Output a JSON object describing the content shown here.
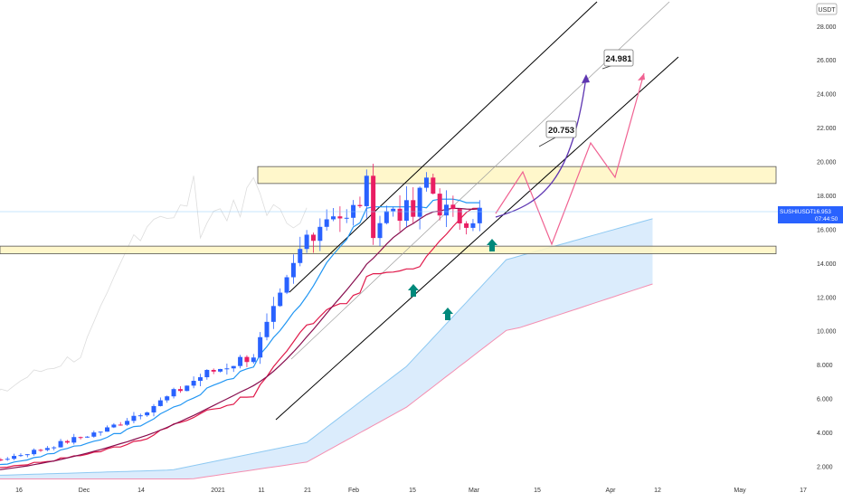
{
  "colors": {
    "up": "#2962ff",
    "down": "#e91e63",
    "tenkan": "#2196f3",
    "kijun": "#e0194a",
    "ema": "#880e4f",
    "cloud_fill": "#cfe6fb",
    "cloud_upper": "#8ec9f2",
    "cloud_lower": "#f48fb1",
    "zone_fill": "#fff6c2",
    "zone_stroke": "#555555",
    "channel": "#000000",
    "channel_mid": "#9e9e9e",
    "path_red": "#f06292",
    "path_purple": "#5e35b1",
    "arrow": "#00897b",
    "price_badge": "#2962ff",
    "price_line": "#90caf9",
    "axis_text": "#333333",
    "lagging": "#dddddd",
    "red_shade": "#f8bbd0"
  },
  "chart_data": {
    "type": "candlestick",
    "symbol": "SUSHIUSDT",
    "y_axis": {
      "unit": "USDT",
      "ticks": [
        "2.000",
        "4.000",
        "6.000",
        "8.000",
        "10.000",
        "12.000",
        "14.000",
        "16.000",
        "18.000",
        "20.000",
        "22.000",
        "24.000",
        "26.000",
        "28.000"
      ],
      "range": [
        1.2,
        29.4
      ],
      "position": "right"
    },
    "x_axis": {
      "ticks": [
        "16",
        "Dec",
        "14",
        "2021",
        "11",
        "21",
        "Feb",
        "15",
        "Mar",
        "15",
        "Apr",
        "12",
        "May",
        "17"
      ]
    },
    "current_price": {
      "label": "SUSHIUSDT",
      "value": "16.953",
      "countdown": "07:44:50"
    },
    "target_labels": [
      "24.981",
      "20.753"
    ],
    "zones": [
      {
        "name": "resistance-zone",
        "low": 18.7,
        "high": 19.7
      },
      {
        "name": "support-zone",
        "low": 14.55,
        "high": 15.0
      }
    ],
    "series": [
      {
        "type": "candles",
        "days_shown": 112,
        "last_close": 16.953
      },
      {
        "type": "line"
      },
      {
        "type": "line"
      },
      {
        "type": "line"
      },
      {
        "type": "ichimoku-cloud"
      }
    ]
  }
}
